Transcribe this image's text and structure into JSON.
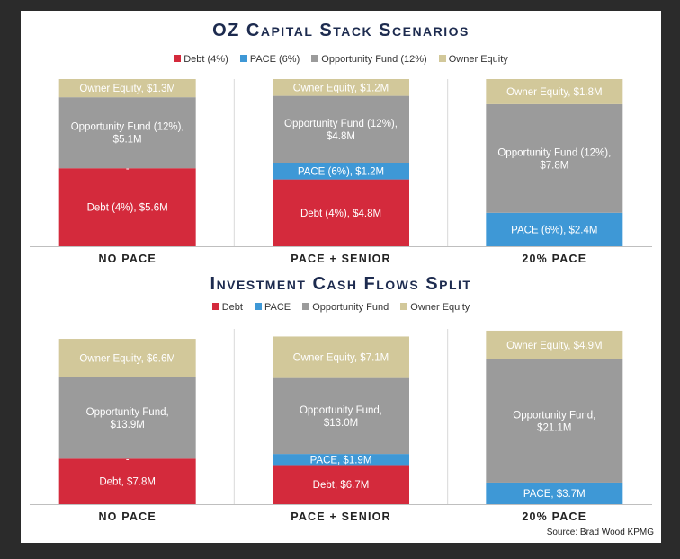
{
  "colors": {
    "debt": "#d42a3c",
    "pace": "#3e98d6",
    "opportunity_fund": "#9b9b9b",
    "owner_equity": "#d2c89a"
  },
  "source": "Source: Brad Wood KPMG",
  "chart_data": [
    {
      "type": "bar",
      "stacked": true,
      "title": "OZ Capital Stack Scenarios",
      "legend_position": "top",
      "legend": [
        "Debt (4%)",
        "PACE (6%)",
        "Opportunity Fund (12%)",
        "Owner Equity"
      ],
      "categories": [
        "NO PACE",
        "PACE + SENIOR",
        "20% PACE"
      ],
      "ymax": 12,
      "series": [
        {
          "name": "Debt (4%)",
          "key": "debt",
          "values": [
            5.6,
            4.8,
            0
          ],
          "labels": [
            "Debt (4%),  $5.6M",
            "Debt (4%),  $4.8M",
            "-"
          ]
        },
        {
          "name": "PACE (6%)",
          "key": "pace",
          "values": [
            0,
            1.2,
            2.4
          ],
          "labels": [
            "-",
            "PACE (6%),  $1.2M",
            "PACE (6%),  $2.4M"
          ]
        },
        {
          "name": "Opportunity Fund (12%)",
          "key": "opportunity_fund",
          "values": [
            5.1,
            4.8,
            7.8
          ],
          "labels": [
            "Opportunity Fund (12%),\n$5.1M",
            "Opportunity Fund (12%),\n$4.8M",
            "Opportunity Fund (12%),\n$7.8M"
          ]
        },
        {
          "name": "Owner Equity",
          "key": "owner_equity",
          "values": [
            1.3,
            1.2,
            1.8
          ],
          "labels": [
            "Owner Equity,  $1.3M",
            "Owner Equity,  $1.2M",
            "Owner Equity,  $1.8M"
          ]
        }
      ]
    },
    {
      "type": "bar",
      "stacked": true,
      "title": "Investment Cash Flows Split",
      "legend_position": "top",
      "legend": [
        "Debt",
        "PACE",
        "Opportunity Fund",
        "Owner Equity"
      ],
      "categories": [
        "NO PACE",
        "PACE + SENIOR",
        "20% PACE"
      ],
      "ymax": 30,
      "series": [
        {
          "name": "Debt",
          "key": "debt",
          "values": [
            7.8,
            6.7,
            0
          ],
          "labels": [
            "Debt,  $7.8M",
            "Debt,  $6.7M",
            "-"
          ]
        },
        {
          "name": "PACE",
          "key": "pace",
          "values": [
            0,
            1.9,
            3.7
          ],
          "labels": [
            "-",
            "PACE,  $1.9M",
            "PACE,  $3.7M"
          ]
        },
        {
          "name": "Opportunity Fund",
          "key": "opportunity_fund",
          "values": [
            13.9,
            13.0,
            21.1
          ],
          "labels": [
            "Opportunity Fund,\n$13.9M",
            "Opportunity Fund,\n$13.0M",
            "Opportunity Fund,\n$21.1M"
          ]
        },
        {
          "name": "Owner Equity",
          "key": "owner_equity",
          "values": [
            6.6,
            7.1,
            4.9
          ],
          "labels": [
            "Owner Equity,  $6.6M",
            "Owner Equity,  $7.1M",
            "Owner Equity,  $4.9M"
          ]
        }
      ]
    }
  ]
}
